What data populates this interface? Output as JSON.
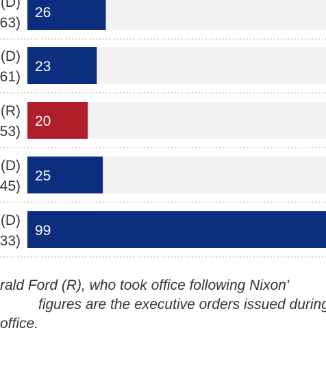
{
  "chart_data": {
    "type": "bar",
    "orientation": "horizontal",
    "categories": [
      {
        "party": "(D)",
        "years": "63)"
      },
      {
        "party": "(D)",
        "years": "61)"
      },
      {
        "party": "(R)",
        "years": "53)"
      },
      {
        "party": "(D)",
        "years": "45)"
      },
      {
        "party": "(D)",
        "years": "33)"
      }
    ],
    "values": [
      26,
      23,
      20,
      25,
      99
    ],
    "colors": [
      "#0b2e7f",
      "#0b2e7f",
      "#b01e2a",
      "#0b2e7f",
      "#0b2e7f"
    ],
    "colors_legend": {
      "D": "#0b2e7f",
      "R": "#b01e2a"
    },
    "track_color": "#f2f2f2",
    "xlim": [
      0,
      99
    ],
    "gridlines": "dotted separators between rows"
  },
  "footnote": {
    "lines": [
      "rald Ford (R), who took office following Nixon'",
      "figures are the executive orders issued during",
      "office."
    ]
  }
}
